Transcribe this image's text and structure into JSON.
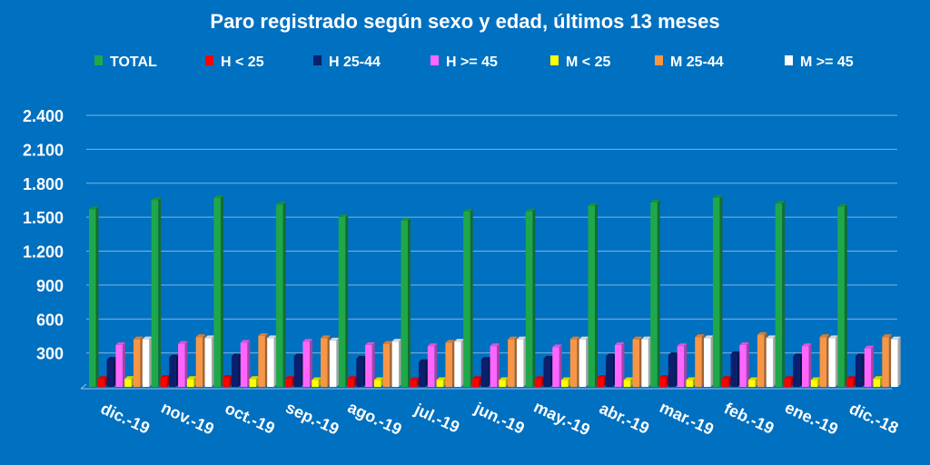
{
  "chart_data": {
    "type": "bar",
    "title": "Paro registrado según sexo y edad, últimos 13 meses",
    "xlabel": "",
    "ylabel": "",
    "ylim": [
      0,
      2400
    ],
    "yticks": [
      "2.400",
      "2.100",
      "1.800",
      "1.500",
      "1.200",
      "900",
      "600",
      "300"
    ],
    "grid": true,
    "legend_position": "top",
    "categories": [
      "dic.-19",
      "nov.-19",
      "oct.-19",
      "sep.-19",
      "ago.-19",
      "jul.-19",
      "jun.-19",
      "may.-19",
      "abr.-19",
      "mar.-19",
      "feb.-19",
      "ene.-19",
      "dic.-18"
    ],
    "series": [
      {
        "name": "TOTAL",
        "color": "#1fa84a",
        "values": [
          1570,
          1650,
          1670,
          1610,
          1500,
          1470,
          1550,
          1550,
          1600,
          1630,
          1670,
          1620,
          1590
        ]
      },
      {
        "name": "H < 25",
        "color": "#ff0000",
        "values": [
          70,
          80,
          80,
          70,
          70,
          60,
          70,
          70,
          80,
          80,
          70,
          70,
          70
        ]
      },
      {
        "name": "H 25-44",
        "color": "#0a1f6e",
        "values": [
          240,
          260,
          270,
          270,
          250,
          220,
          240,
          250,
          270,
          280,
          290,
          270,
          270
        ]
      },
      {
        "name": "H >= 45",
        "color": "#ff66ff",
        "values": [
          370,
          380,
          390,
          400,
          370,
          360,
          360,
          350,
          370,
          360,
          370,
          360,
          340
        ]
      },
      {
        "name": "M < 25",
        "color": "#ffff00",
        "values": [
          70,
          70,
          70,
          60,
          60,
          60,
          60,
          60,
          60,
          60,
          60,
          60,
          70
        ]
      },
      {
        "name": "M 25-44",
        "color": "#f79646",
        "values": [
          420,
          440,
          450,
          430,
          380,
          390,
          420,
          420,
          420,
          440,
          460,
          440,
          440
        ]
      },
      {
        "name": "M >= 45",
        "color": "#ffffff",
        "values": [
          420,
          430,
          430,
          410,
          400,
          400,
          420,
          420,
          420,
          430,
          430,
          430,
          420
        ]
      }
    ]
  }
}
